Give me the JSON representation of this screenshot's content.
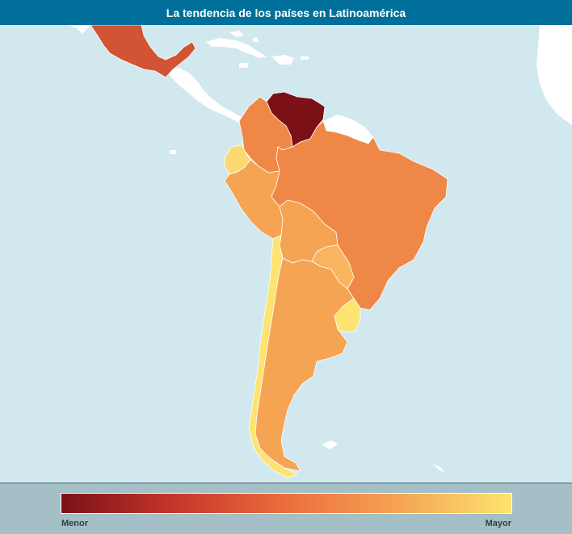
{
  "header": {
    "title": "La tendencia de los países en Latinoamérica"
  },
  "legend": {
    "min_label": "Menor",
    "max_label": "Mayor",
    "gradient": [
      "#7b1116",
      "#c6352a",
      "#ec6e3c",
      "#f5a454",
      "#fde36f"
    ]
  },
  "colors": {
    "ocean": "#d1e8ef",
    "neutral_land": "#ffffff",
    "header": "#00709a",
    "legend_panel": "#a4bfc5"
  },
  "countries": {
    "mexico": {
      "color": "#d25434",
      "level": 0.32
    },
    "venezuela": {
      "color": "#7b1116",
      "level": 0.0
    },
    "colombia": {
      "color": "#ef8746",
      "level": 0.52
    },
    "ecuador": {
      "color": "#fcd970",
      "level": 0.92
    },
    "peru": {
      "color": "#f5a454",
      "level": 0.68
    },
    "brazil": {
      "color": "#ef8746",
      "level": 0.52
    },
    "bolivia": {
      "color": "#f5a454",
      "level": 0.68
    },
    "paraguay": {
      "color": "#f8b45f",
      "level": 0.74
    },
    "chile": {
      "color": "#fde36f",
      "level": 0.98
    },
    "argentina": {
      "color": "#f5a454",
      "level": 0.68
    },
    "uruguay": {
      "color": "#fde36f",
      "level": 0.98
    }
  }
}
